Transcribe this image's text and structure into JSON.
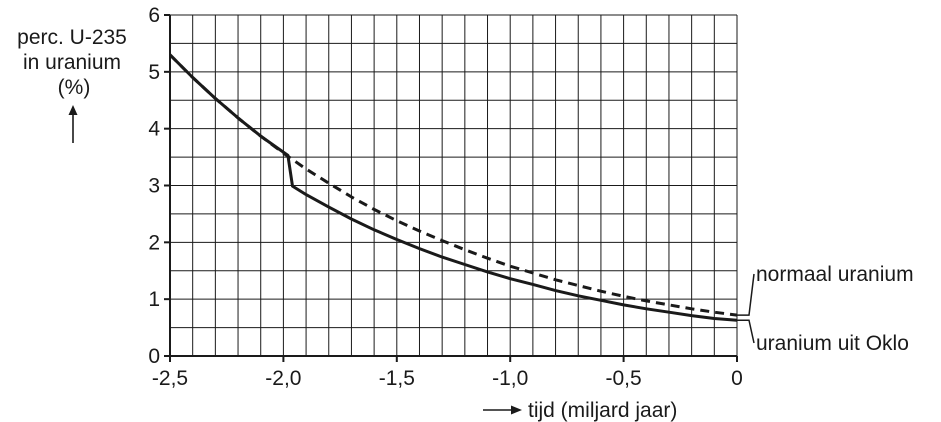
{
  "chart_data": {
    "type": "line",
    "title": "",
    "ylabel_lines": [
      "perc. U-235",
      "in uranium",
      "(%)"
    ],
    "xlabel": "tijd (miljard jaar)",
    "xlim": [
      -2.5,
      0
    ],
    "ylim": [
      0,
      6
    ],
    "x_ticks": [
      -2.5,
      -2.0,
      -1.5,
      -1.0,
      -0.5,
      0
    ],
    "x_tick_labels": [
      "-2,5",
      "-2,0",
      "-1,5",
      "-1,0",
      "-0,5",
      "0"
    ],
    "y_ticks": [
      0,
      1,
      2,
      3,
      4,
      5,
      6
    ],
    "y_tick_labels": [
      "0",
      "1",
      "2",
      "3",
      "4",
      "5",
      "6"
    ],
    "grid": true,
    "grid_step_x": 0.1,
    "grid_step_y": 0.5,
    "series": [
      {
        "name": "normaal uranium",
        "style": "dashed",
        "color": "#1a1a1a",
        "x": [
          -2.5,
          -2.4,
          -2.3,
          -2.2,
          -2.1,
          -2.0,
          -1.9,
          -1.8,
          -1.7,
          -1.6,
          -1.5,
          -1.4,
          -1.3,
          -1.2,
          -1.1,
          -1.0,
          -0.9,
          -0.8,
          -0.7,
          -0.6,
          -0.5,
          -0.4,
          -0.3,
          -0.2,
          -0.1,
          0.0
        ],
        "y": [
          5.3,
          4.9,
          4.53,
          4.19,
          3.87,
          3.57,
          3.29,
          3.04,
          2.8,
          2.58,
          2.38,
          2.2,
          2.03,
          1.87,
          1.72,
          1.58,
          1.46,
          1.34,
          1.24,
          1.14,
          1.05,
          0.97,
          0.9,
          0.83,
          0.77,
          0.72
        ]
      },
      {
        "name": "uranium uit Oklo",
        "style": "solid",
        "color": "#1a1a1a",
        "x": [
          -2.5,
          -2.4,
          -2.3,
          -2.2,
          -2.1,
          -1.98,
          -1.96,
          -1.9,
          -1.8,
          -1.7,
          -1.6,
          -1.5,
          -1.4,
          -1.3,
          -1.2,
          -1.1,
          -1.0,
          -0.9,
          -0.8,
          -0.7,
          -0.6,
          -0.5,
          -0.4,
          -0.3,
          -0.2,
          -0.1,
          0.0
        ],
        "y": [
          5.3,
          4.9,
          4.53,
          4.19,
          3.87,
          3.53,
          2.99,
          2.84,
          2.62,
          2.41,
          2.22,
          2.05,
          1.89,
          1.74,
          1.61,
          1.48,
          1.36,
          1.26,
          1.15,
          1.06,
          0.98,
          0.9,
          0.83,
          0.77,
          0.71,
          0.66,
          0.63
        ]
      }
    ],
    "legend_placement": "right"
  }
}
